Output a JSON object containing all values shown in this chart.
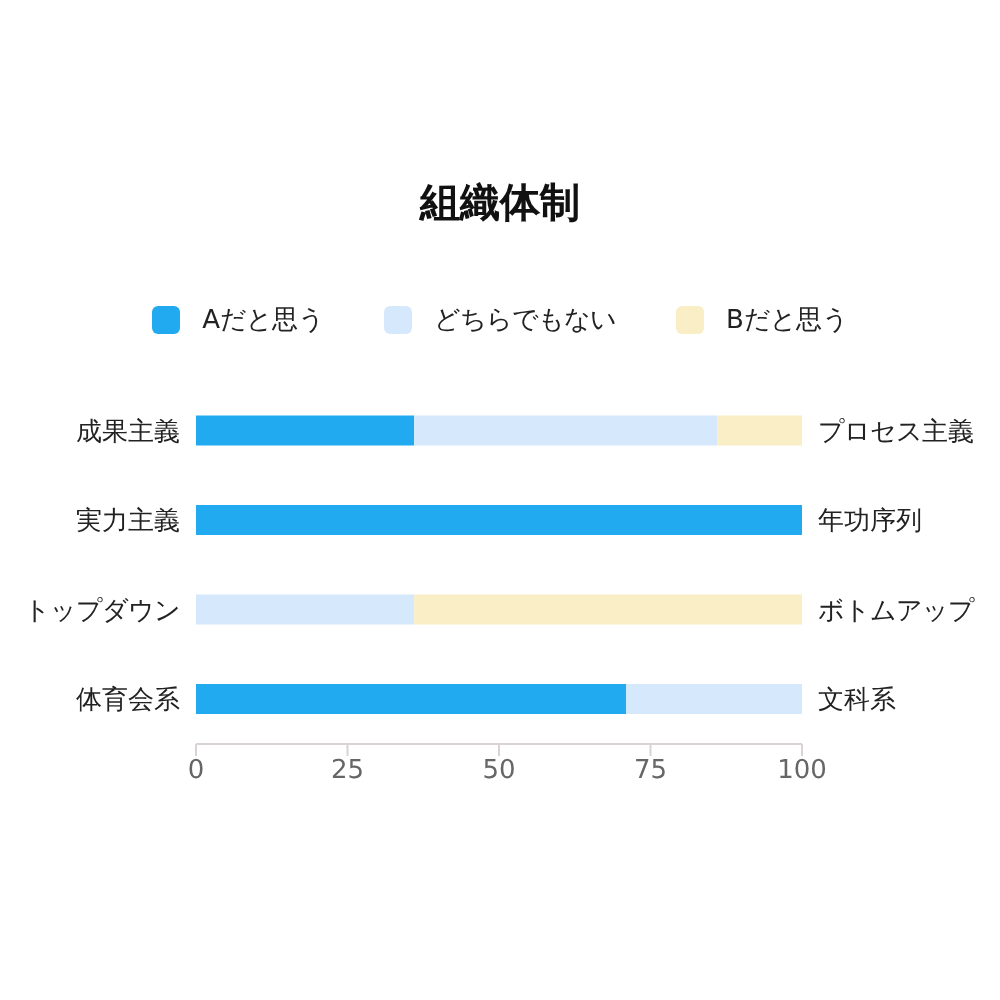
{
  "chart_data": {
    "type": "bar",
    "title": "組織体制",
    "orientation": "horizontal",
    "stacked": true,
    "categories": [
      "成果主義",
      "実力主義",
      "トップダウン",
      "体育会系"
    ],
    "y2_categories": [
      "プロセス主義",
      "年功序列",
      "ボトムアップ",
      "文科系"
    ],
    "series": [
      {
        "name": "Aだと思う",
        "color": "#22aaf0",
        "values": [
          36,
          100,
          0,
          71
        ]
      },
      {
        "name": "どちらでもない",
        "color": "#d6e8fb",
        "values": [
          50,
          0,
          36,
          29
        ]
      },
      {
        "name": "Bだと思う",
        "color": "#faeec6",
        "values": [
          14,
          0,
          64,
          0
        ]
      }
    ],
    "xlim": [
      0,
      100
    ],
    "xticks": [
      0,
      25,
      50,
      75,
      100
    ],
    "legend": "top"
  }
}
